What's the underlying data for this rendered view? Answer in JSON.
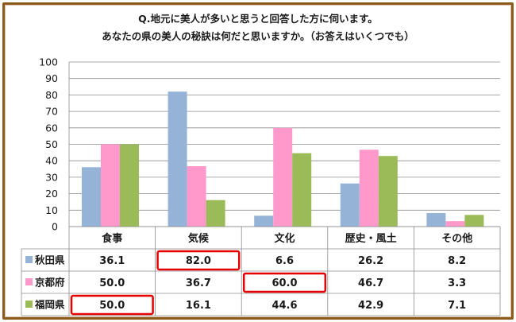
{
  "title_line1": "Q.地元に美人が多いと思うと回答した方に伺います。",
  "title_line2": "あなたの県の美人の秘訣は何だと思いますか。（お答えはいくつでも）",
  "chart_data": {
    "type": "bar",
    "categories": [
      "食事",
      "気候",
      "文化",
      "歴史・風土",
      "その他"
    ],
    "yticks": [
      "0",
      "10",
      "20",
      "30",
      "40",
      "50",
      "60",
      "70",
      "80",
      "90",
      "100"
    ],
    "ylim": [
      0,
      100
    ],
    "grid": true,
    "series": [
      {
        "name": "秋田県",
        "color": "#95b3d7",
        "values": [
          36.1,
          82.0,
          6.6,
          26.2,
          8.2
        ],
        "labels": [
          "36.1",
          "82.0",
          "6.6",
          "26.2",
          "8.2"
        ]
      },
      {
        "name": "京都府",
        "color": "#ff99cc",
        "values": [
          50.0,
          36.7,
          60.0,
          46.7,
          3.3
        ],
        "labels": [
          "50.0",
          "36.7",
          "60.0",
          "46.7",
          "3.3"
        ]
      },
      {
        "name": "福岡県",
        "color": "#9bbb59",
        "values": [
          50.0,
          16.1,
          44.6,
          42.9,
          7.1
        ],
        "labels": [
          "50.0",
          "16.1",
          "44.6",
          "42.9",
          "7.1"
        ]
      }
    ],
    "highlights": [
      {
        "series": 0,
        "category": 1,
        "color": "#e60000"
      },
      {
        "series": 1,
        "category": 2,
        "color": "#e60000"
      },
      {
        "series": 2,
        "category": 0,
        "color": "#e60000"
      }
    ]
  }
}
